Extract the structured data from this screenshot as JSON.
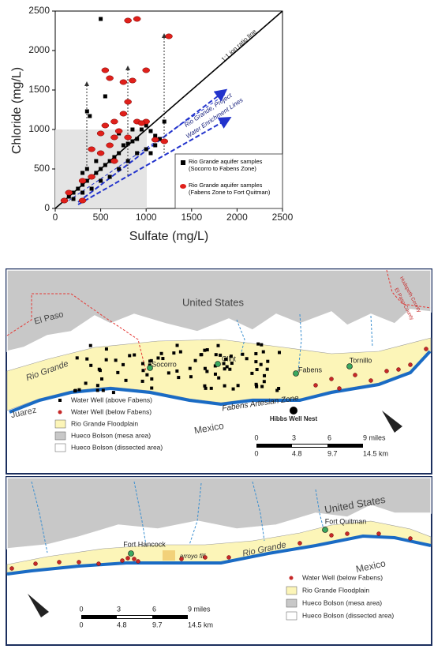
{
  "chart_data": {
    "type": "scatter",
    "xlabel": "Sulfate (mg/L)",
    "ylabel": "Chloride (mg/L)",
    "annotations": [
      "1:1 ion ratio line",
      "Rio Grande, Project",
      "Water Enrichment Lines"
    ],
    "xlim": [
      0,
      2500
    ],
    "ylim": [
      0,
      2500
    ],
    "xticks": [
      0,
      500,
      1000,
      1500,
      2000,
      2500
    ],
    "yticks": [
      0,
      500,
      1000,
      1500,
      2000,
      2500
    ],
    "legend": "lower right",
    "series": [
      {
        "name": "Rio Grande aquifer samples (Socorro to Fabens Zone)",
        "color": "#000000",
        "marker": "square",
        "x": [
          500,
          550,
          350,
          380,
          1000,
          950,
          1050,
          1100,
          1150,
          900,
          850,
          800,
          750,
          700,
          650,
          600,
          550,
          500,
          450,
          400,
          350,
          300,
          250,
          200,
          150,
          100,
          900,
          1000,
          1100,
          800,
          700,
          600,
          500,
          400,
          300,
          200,
          1050,
          1200,
          600,
          450,
          350,
          300,
          700,
          850
        ],
        "values": [
          2400,
          1420,
          1230,
          1170,
          1050,
          1000,
          980,
          920,
          880,
          880,
          850,
          820,
          800,
          700,
          650,
          600,
          550,
          500,
          450,
          400,
          350,
          300,
          250,
          200,
          150,
          100,
          700,
          750,
          800,
          600,
          500,
          400,
          350,
          250,
          200,
          120,
          700,
          1100,
          800,
          600,
          500,
          450,
          950,
          1000
        ]
      },
      {
        "name": "Rio Grande aquifer samples (Fabens Zone to Fort Quitman)",
        "color": "#e0201b",
        "marker": "ellipse",
        "x": [
          900,
          800,
          1250,
          550,
          600,
          750,
          850,
          1000,
          800,
          750,
          650,
          900,
          1000,
          950,
          550,
          700,
          500,
          650,
          800,
          1100,
          1200,
          400,
          600,
          500,
          650,
          400,
          300,
          150,
          100,
          300
        ],
        "values": [
          2400,
          2380,
          2180,
          1750,
          1650,
          1600,
          1620,
          1750,
          1350,
          1200,
          1100,
          1100,
          1100,
          1080,
          1050,
          980,
          950,
          900,
          900,
          870,
          850,
          750,
          800,
          700,
          600,
          400,
          350,
          200,
          100,
          100
        ]
      }
    ]
  },
  "map_1": {
    "labels": [
      "United States",
      "El Paso",
      "Rio Grande",
      "Socorro",
      "Clint",
      "Fabens",
      "Tornillo",
      "Fabens Artesian Zone",
      "Hibbs Well Nest",
      "Juarez",
      "Mexico",
      "Hudspeth County",
      "El Paso County"
    ],
    "legend": [
      "Water Well (above Fabens)",
      "Water Well (below Fabens)",
      "Rio Grande Floodplain",
      "Hueco Bolson (mesa area)",
      "Hueco Bolson (dissected area)"
    ],
    "scale_miles": [
      "0",
      "3",
      "6",
      "9 miles"
    ],
    "scale_km": [
      "0",
      "4.8",
      "9.7",
      "14.5 km"
    ]
  },
  "map_2": {
    "labels": [
      "United States",
      "Fort Quitman",
      "Fort Hancock",
      "arroyo fill",
      "Rio Grande",
      "Mexico"
    ],
    "legend": [
      "Water Well (below Fabens)",
      "Rio Grande Floodplain",
      "Hueco Bolson (mesa area)",
      "Hueco Bolson (dissected area)"
    ],
    "scale_miles": [
      "0",
      "3",
      "6",
      "9 miles"
    ],
    "scale_km": [
      "0",
      "4.8",
      "9.7",
      "14.5 km"
    ]
  }
}
